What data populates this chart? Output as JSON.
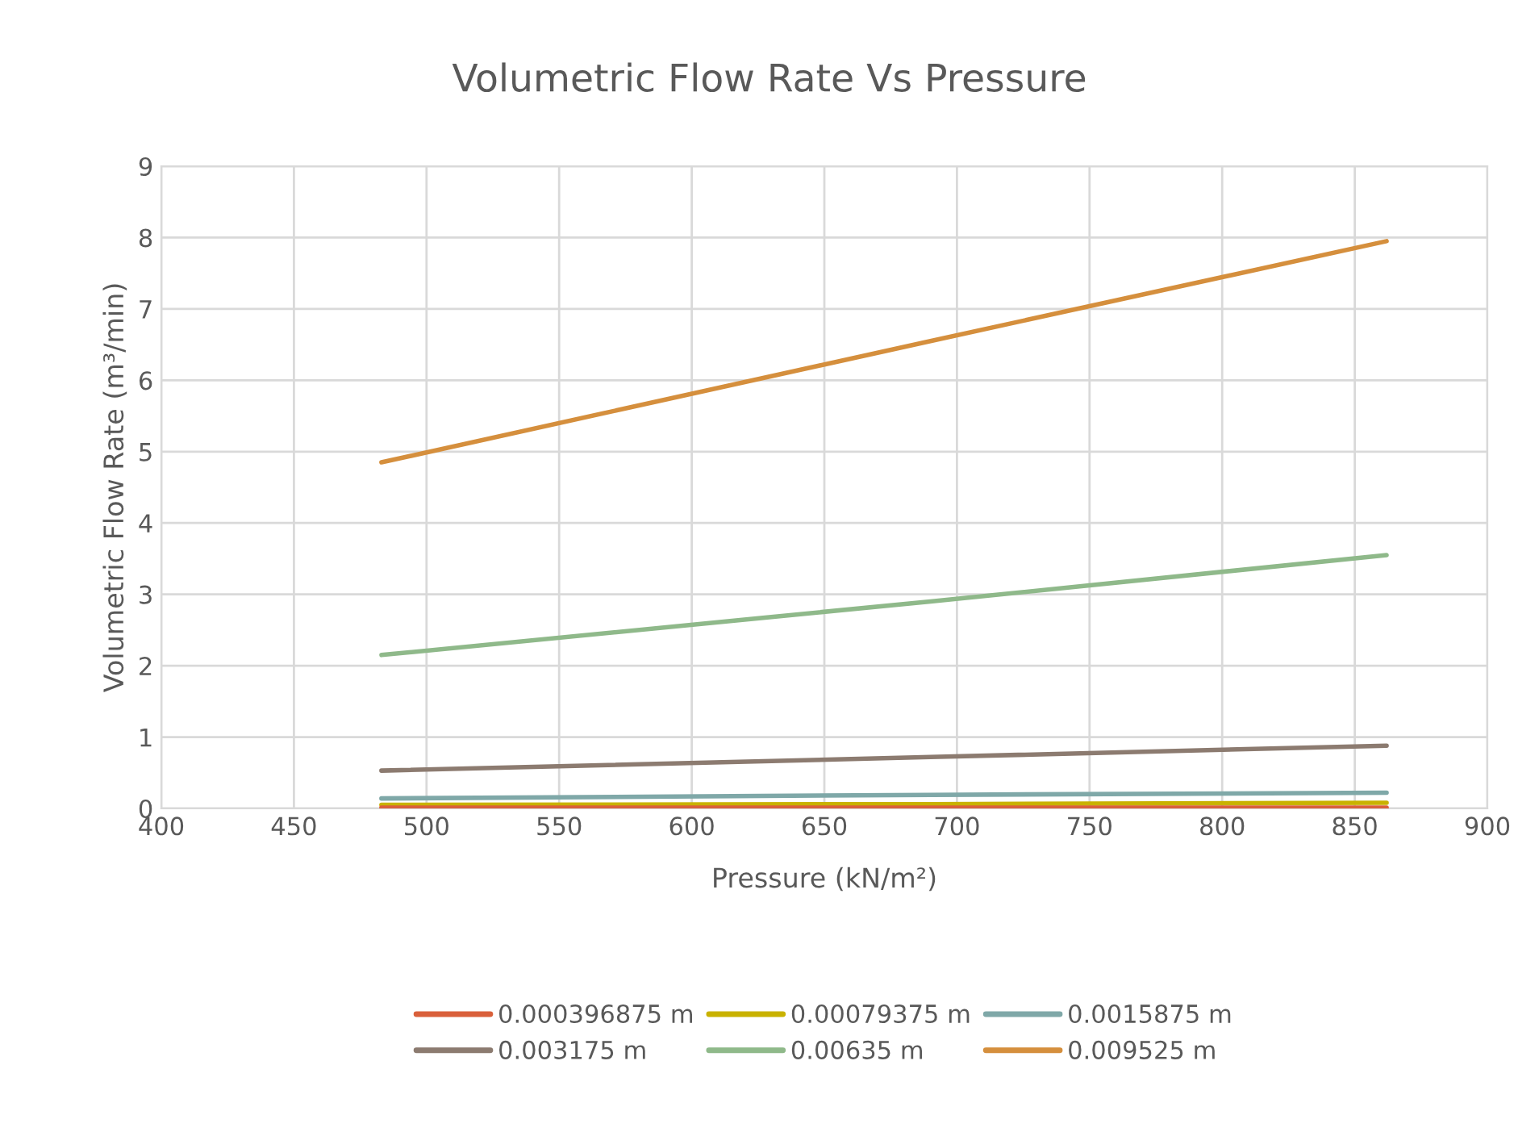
{
  "chart_data": {
    "type": "line",
    "title": "Volumetric Flow Rate Vs Pressure",
    "xlabel": "Pressure (kN/m²)",
    "ylabel": "Volumetric Flow Rate (m³/min)",
    "xlim": [
      400,
      900
    ],
    "xticks": [
      400,
      450,
      500,
      550,
      600,
      650,
      700,
      750,
      800,
      850,
      900
    ],
    "ylim": [
      0,
      9
    ],
    "yticks": [
      0,
      1,
      2,
      3,
      4,
      5,
      6,
      7,
      8,
      9
    ],
    "grid": true,
    "legend": "bottom",
    "marker": "none",
    "line_style": "solid",
    "series": [
      {
        "name": "0.000396875 m",
        "color": "#d9603b",
        "x": [
          483,
          690,
          862
        ],
        "values": [
          0.01,
          0.01,
          0.01
        ]
      },
      {
        "name": "0.00079375 m",
        "color": "#c9b200",
        "x": [
          483,
          690,
          862
        ],
        "values": [
          0.05,
          0.06,
          0.08
        ]
      },
      {
        "name": "0.0015875 m",
        "color": "#7fa8a8",
        "x": [
          483,
          690,
          862
        ],
        "values": [
          0.14,
          0.19,
          0.22
        ]
      },
      {
        "name": "0.003175 m",
        "color": "#8c7b70",
        "x": [
          483,
          690,
          862
        ],
        "values": [
          0.53,
          0.72,
          0.88
        ]
      },
      {
        "name": "0.00635 m",
        "color": "#8fb98a",
        "x": [
          483,
          690,
          862
        ],
        "values": [
          2.15,
          2.9,
          3.55
        ]
      },
      {
        "name": "0.009525 m",
        "color": "#d58f3d",
        "x": [
          483,
          690,
          862
        ],
        "values": [
          4.85,
          6.55,
          7.95
        ]
      }
    ]
  }
}
